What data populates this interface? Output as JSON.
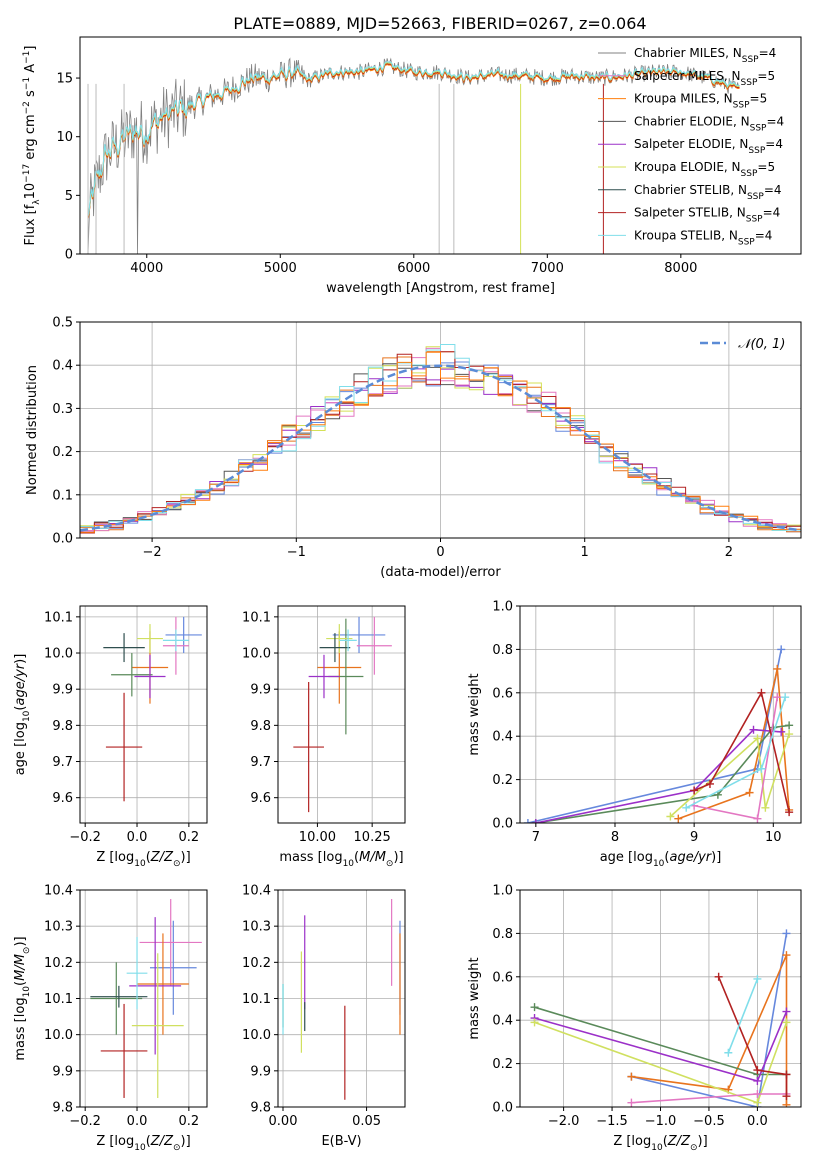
{
  "figure": {
    "title": "PLATE=0889, MJD=52663, FIBERID=0267, z=0.064"
  },
  "colors": {
    "grid": "#b0b0b0",
    "series": [
      "#808080",
      "#e377c2",
      "#ff7f0e",
      "#555555",
      "#9b30c8",
      "#d4e157",
      "#2f4f4f",
      "#b22222",
      "#80deea"
    ],
    "gauss": "#5b8bd6",
    "series_ext": [
      "#6688dd",
      "#e8741e",
      "#5a8a5a",
      "#9b30c8",
      "#d0e060",
      "#e377c2",
      "#b22222",
      "#80deea"
    ]
  },
  "chart_data": [
    {
      "id": "spectrum",
      "type": "line",
      "xlabel": "wavelength [Angstrom, rest frame]",
      "ylabel": "Flux [f_λ10^-17 erg cm^-2 s^-1 A^-1]",
      "xlim": [
        3500,
        8900
      ],
      "ylim": [
        0,
        18.5
      ],
      "xticks": [
        4000,
        5000,
        6000,
        7000,
        8000
      ],
      "yticks": [
        0,
        5,
        10,
        15
      ],
      "legend": [
        "Chabrier MILES, N_SSP=4",
        "Salpeter MILES, N_SSP=5",
        "Kroupa MILES, N_SSP=5",
        "Chabrier ELODIE, N_SSP=4",
        "Salpeter ELODIE, N_SSP=4",
        "Kroupa ELODIE, N_SSP=5",
        "Chabrier STELIB, N_SSP=4",
        "Salpeter STELIB, N_SSP=4",
        "Kroupa STELIB, N_SSP=4"
      ],
      "legend_position": "right",
      "anchors": [
        [
          3560,
          3
        ],
        [
          3620,
          6
        ],
        [
          3700,
          8.5
        ],
        [
          3800,
          9.5
        ],
        [
          3900,
          10.5
        ],
        [
          4000,
          10.5
        ],
        [
          4100,
          11.5
        ],
        [
          4200,
          12
        ],
        [
          4300,
          12.5
        ],
        [
          4400,
          13
        ],
        [
          4500,
          13.5
        ],
        [
          4600,
          13.8
        ],
        [
          4700,
          14.5
        ],
        [
          4800,
          15
        ],
        [
          4900,
          15
        ],
        [
          5000,
          15.2
        ],
        [
          5100,
          15.5
        ],
        [
          5200,
          14.8
        ],
        [
          5400,
          15.5
        ],
        [
          5600,
          15.5
        ],
        [
          5800,
          16
        ],
        [
          6000,
          15.5
        ],
        [
          6200,
          15.5
        ],
        [
          6400,
          15
        ],
        [
          6600,
          15.3
        ],
        [
          6800,
          15.2
        ],
        [
          7000,
          15
        ],
        [
          7200,
          15.2
        ],
        [
          7400,
          15
        ],
        [
          7600,
          15.2
        ],
        [
          7800,
          15.5
        ],
        [
          8000,
          15.5
        ],
        [
          8200,
          15
        ],
        [
          8440,
          14
        ]
      ]
    },
    {
      "id": "residuals",
      "type": "area",
      "xlabel": "(data-model)/error",
      "ylabel": "Normed distribution",
      "xlim": [
        -2.5,
        2.5
      ],
      "ylim": [
        0,
        0.5
      ],
      "xticks": [
        -2,
        -1,
        0,
        1,
        2
      ],
      "yticks": [
        0.0,
        0.1,
        0.2,
        0.3,
        0.4,
        0.5
      ],
      "legend": [
        "𝒩(0, 1)"
      ],
      "legend_position": "top-right",
      "bin_width": 0.1
    },
    {
      "id": "age-vs-Z",
      "type": "scatter",
      "xlabel": "Z [log10(Z/Z⊙)]",
      "ylabel": "age [log10(age/yr)]",
      "xlim": [
        -0.22,
        0.27
      ],
      "ylim": [
        9.53,
        10.13
      ],
      "xticks": [
        -0.2,
        0.0,
        0.2
      ],
      "yticks": [
        9.6,
        9.7,
        9.8,
        9.9,
        10.0,
        10.1
      ],
      "points": [
        {
          "x": 0.18,
          "xerr": 0.07,
          "y": 10.05,
          "yerr": 0.05
        },
        {
          "x": 0.15,
          "xerr": 0.05,
          "y": 10.02,
          "yerr": 0.08
        },
        {
          "x": 0.05,
          "xerr": 0.07,
          "y": 9.96,
          "yerr": 0.1
        },
        {
          "x": -0.02,
          "xerr": 0.08,
          "y": 9.94,
          "yerr": 0.06
        },
        {
          "x": 0.05,
          "xerr": 0.06,
          "y": 9.935,
          "yerr": 0.06
        },
        {
          "x": 0.05,
          "xerr": 0.05,
          "y": 10.04,
          "yerr": 0.04
        },
        {
          "x": -0.05,
          "xerr": 0.08,
          "y": 10.015,
          "yerr": 0.04
        },
        {
          "x": -0.05,
          "xerr": 0.07,
          "y": 9.74,
          "yerr": 0.15
        },
        {
          "x": 0.15,
          "xerr": 0.05,
          "y": 10.035,
          "yerr": 0.03
        }
      ]
    },
    {
      "id": "age-vs-mass",
      "type": "scatter",
      "xlabel": "mass [log10(M/M⊙)]",
      "ylabel": "",
      "xlim": [
        9.82,
        10.4
      ],
      "ylim": [
        9.53,
        10.13
      ],
      "xticks": [
        10.0,
        10.25
      ],
      "yticks": [
        9.6,
        9.7,
        9.8,
        9.9,
        10.0,
        10.1
      ],
      "points": [
        {
          "x": 10.19,
          "xerr": 0.12,
          "y": 10.05,
          "yerr": 0.05
        },
        {
          "x": 10.26,
          "xerr": 0.08,
          "y": 10.02,
          "yerr": 0.08
        },
        {
          "x": 10.1,
          "xerr": 0.1,
          "y": 9.96,
          "yerr": 0.1
        },
        {
          "x": 10.13,
          "xerr": 0.08,
          "y": 9.935,
          "yerr": 0.16
        },
        {
          "x": 10.03,
          "xerr": 0.07,
          "y": 9.935,
          "yerr": 0.06
        },
        {
          "x": 10.1,
          "xerr": 0.06,
          "y": 10.04,
          "yerr": 0.04
        },
        {
          "x": 10.08,
          "xerr": 0.07,
          "y": 10.015,
          "yerr": 0.04
        },
        {
          "x": 9.96,
          "xerr": 0.07,
          "y": 9.74,
          "yerr": 0.18
        },
        {
          "x": 10.14,
          "xerr": 0.04,
          "y": 10.035,
          "yerr": 0.03
        }
      ]
    },
    {
      "id": "weight-vs-age",
      "type": "line",
      "xlabel": "age [log10(age/yr)]",
      "ylabel": "mass weight",
      "xlim": [
        6.8,
        10.35
      ],
      "ylim": [
        0,
        1.0
      ],
      "xticks": [
        7,
        8,
        9,
        10
      ],
      "yticks": [
        0.0,
        0.2,
        0.4,
        0.6,
        0.8,
        1.0
      ],
      "series": [
        {
          "values": [
            [
              6.9,
              0.0
            ],
            [
              9.8,
              0.25
            ],
            [
              10.1,
              0.8
            ]
          ]
        },
        {
          "values": [
            [
              8.8,
              0.02
            ],
            [
              9.7,
              0.14
            ],
            [
              10.05,
              0.71
            ],
            [
              10.2,
              0.06
            ]
          ]
        },
        {
          "values": [
            [
              7.0,
              0.0
            ],
            [
              9.3,
              0.13
            ],
            [
              10.0,
              0.44
            ],
            [
              10.2,
              0.45
            ]
          ]
        },
        {
          "values": [
            [
              7.0,
              0.0
            ],
            [
              9.0,
              0.15
            ],
            [
              9.75,
              0.43
            ],
            [
              10.1,
              0.42
            ]
          ]
        },
        {
          "values": [
            [
              8.7,
              0.03
            ],
            [
              9.8,
              0.39
            ],
            [
              9.9,
              0.07
            ],
            [
              10.2,
              0.41
            ]
          ]
        },
        {
          "values": [
            [
              9.0,
              0.08
            ],
            [
              9.8,
              0.02
            ],
            [
              10.05,
              0.58
            ]
          ]
        },
        {
          "values": [
            [
              9.0,
              0.15
            ],
            [
              9.2,
              0.18
            ],
            [
              9.85,
              0.6
            ],
            [
              10.2,
              0.05
            ]
          ]
        },
        {
          "values": [
            [
              8.9,
              0.07
            ],
            [
              9.85,
              0.25
            ],
            [
              10.15,
              0.58
            ]
          ]
        }
      ]
    },
    {
      "id": "mass-vs-Z",
      "type": "scatter",
      "xlabel": "Z [log10(Z/Z⊙)]",
      "ylabel": "mass [log10(M/M⊙)]",
      "xlim": [
        -0.22,
        0.27
      ],
      "ylim": [
        9.8,
        10.4
      ],
      "xticks": [
        -0.2,
        0.0,
        0.2
      ],
      "yticks": [
        9.8,
        9.9,
        10.0,
        10.1,
        10.2,
        10.3,
        10.4
      ],
      "points": [
        {
          "x": 0.14,
          "xerr": 0.09,
          "y": 10.185,
          "yerr": 0.13
        },
        {
          "x": 0.13,
          "xerr": 0.12,
          "y": 10.255,
          "yerr": 0.12
        },
        {
          "x": 0.1,
          "xerr": 0.1,
          "y": 10.14,
          "yerr": 0.14
        },
        {
          "x": -0.08,
          "xerr": 0.1,
          "y": 10.1,
          "yerr": 0.1
        },
        {
          "x": 0.07,
          "xerr": 0.1,
          "y": 10.135,
          "yerr": 0.19
        },
        {
          "x": 0.08,
          "xerr": 0.1,
          "y": 10.025,
          "yerr": 0.2
        },
        {
          "x": -0.07,
          "xerr": 0.11,
          "y": 10.105,
          "yerr": 0.03
        },
        {
          "x": -0.05,
          "xerr": 0.09,
          "y": 9.955,
          "yerr": 0.13
        },
        {
          "x": 0.0,
          "xerr": 0.04,
          "y": 10.17,
          "yerr": 0.1
        }
      ]
    },
    {
      "id": "mass-vs-ebv",
      "type": "scatter",
      "xlabel": "E(B-V)",
      "ylabel": "",
      "xlim": [
        -0.003,
        0.073
      ],
      "ylim": [
        9.8,
        10.4
      ],
      "xticks": [
        0.0,
        0.05
      ],
      "yticks": [
        9.8,
        9.9,
        10.0,
        10.1,
        10.2,
        10.3,
        10.4
      ],
      "points": [
        {
          "x": 0.07,
          "y": 10.185,
          "yerr": 0.13
        },
        {
          "x": 0.065,
          "y": 10.255,
          "yerr": 0.12
        },
        {
          "x": 0.07,
          "y": 10.14,
          "yerr": 0.14
        },
        {
          "x": 0.0,
          "y": 10.08,
          "yerr": 0.06
        },
        {
          "x": 0.013,
          "y": 10.2,
          "yerr": 0.13
        },
        {
          "x": 0.011,
          "y": 10.09,
          "yerr": 0.14
        },
        {
          "x": 0.013,
          "y": 10.05,
          "yerr": 0.04
        },
        {
          "x": 0.037,
          "y": 9.95,
          "yerr": 0.13
        },
        {
          "x": 0.0,
          "y": 10.07,
          "yerr": 0.07
        }
      ]
    },
    {
      "id": "weight-vs-Z",
      "type": "line",
      "xlabel": "Z [log10(Z/Z⊙)]",
      "ylabel": "mass weight",
      "xlim": [
        -2.45,
        0.45
      ],
      "ylim": [
        0,
        1.0
      ],
      "xticks": [
        -2.0,
        -1.5,
        -1.0,
        -0.5,
        0.0
      ],
      "yticks": [
        0.0,
        0.2,
        0.4,
        0.6,
        0.8,
        1.0
      ],
      "series": [
        {
          "values": [
            [
              -1.3,
              0.14
            ],
            [
              0.0,
              0.0
            ],
            [
              0.3,
              0.8
            ]
          ]
        },
        {
          "values": [
            [
              -1.3,
              0.14
            ],
            [
              -0.3,
              0.08
            ],
            [
              0.3,
              0.7
            ],
            [
              0.3,
              0.01
            ]
          ]
        },
        {
          "values": [
            [
              -2.3,
              0.46
            ],
            [
              0.0,
              0.15
            ],
            [
              0.3,
              0.15
            ]
          ]
        },
        {
          "values": [
            [
              -2.3,
              0.41
            ],
            [
              0.0,
              0.12
            ],
            [
              0.3,
              0.44
            ]
          ]
        },
        {
          "values": [
            [
              -2.3,
              0.39
            ],
            [
              0.0,
              0.02
            ],
            [
              0.3,
              0.39
            ]
          ]
        },
        {
          "values": [
            [
              -1.3,
              0.02
            ],
            [
              0.0,
              0.06
            ],
            [
              0.3,
              0.06
            ]
          ]
        },
        {
          "values": [
            [
              -0.4,
              0.6
            ],
            [
              0.0,
              0.17
            ],
            [
              0.3,
              0.15
            ],
            [
              0.3,
              0.05
            ]
          ]
        },
        {
          "values": [
            [
              -0.3,
              0.25
            ],
            [
              0.0,
              0.59
            ]
          ]
        }
      ]
    }
  ]
}
